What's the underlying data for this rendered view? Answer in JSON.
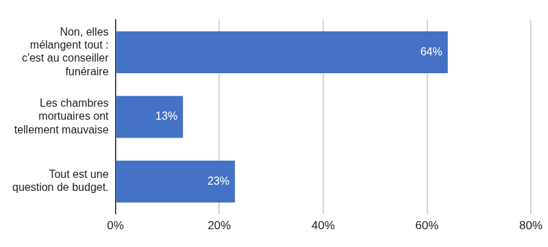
{
  "chart_data": {
    "type": "bar",
    "orientation": "horizontal",
    "categories": [
      "Non, elles mélangent tout : c'est au conseiller funéraire",
      "Les chambres mortuaires ont tellement mauvaise",
      "Tout est une question de budget."
    ],
    "values": [
      64,
      13,
      23
    ],
    "value_labels": [
      "64%",
      "13%",
      "23%"
    ],
    "data_labels": true,
    "color": "#4472c4",
    "xlim": [
      0,
      80
    ],
    "xticks": [
      {
        "value": 0,
        "label": "0%"
      },
      {
        "value": 20,
        "label": "20%"
      },
      {
        "value": 40,
        "label": "40%"
      },
      {
        "value": 60,
        "label": "60%"
      },
      {
        "value": 80,
        "label": "80%"
      }
    ],
    "grid": true
  }
}
